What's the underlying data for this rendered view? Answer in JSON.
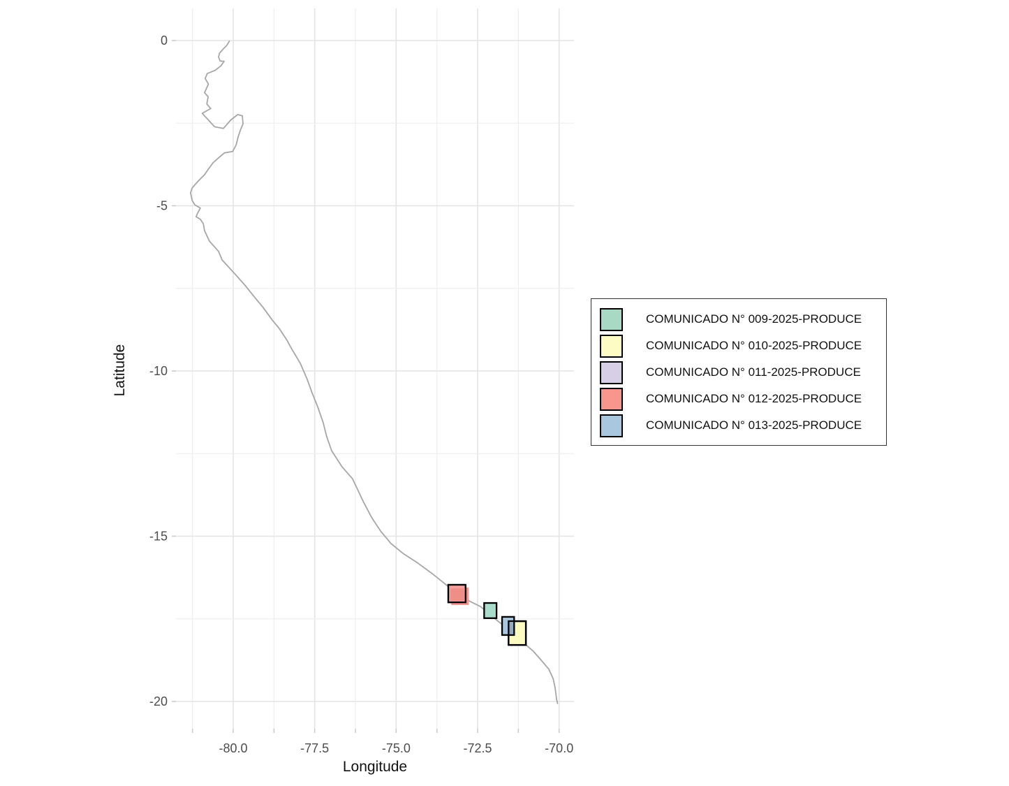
{
  "axis_x_title": "Longitude",
  "axis_y_title": "Latitude",
  "legend": {
    "items": [
      {
        "label": "COMUNICADO N° 009-2025-PRODUCE",
        "color": "#A7D9C5"
      },
      {
        "label": "COMUNICADO N° 010-2025-PRODUCE",
        "color": "#FCFCC4"
      },
      {
        "label": "COMUNICADO N° 011-2025-PRODUCE",
        "color": "#D6CFE5"
      },
      {
        "label": "COMUNICADO N° 012-2025-PRODUCE",
        "color": "#F8958C"
      },
      {
        "label": "COMUNICADO N° 013-2025-PRODUCE",
        "color": "#A9C7DF"
      }
    ]
  },
  "chart_data": {
    "type": "map",
    "title": "",
    "xlabel": "Longitude",
    "ylabel": "Latitude",
    "x_axis": {
      "range": [
        -81.76,
        -69.54
      ],
      "major_breaks": [
        -80.0,
        -77.5,
        -75.0,
        -72.5,
        -70.0
      ],
      "labels": [
        "-80.0",
        "-77.5",
        "-75.0",
        "-72.5",
        "-70.0"
      ],
      "minor_step": 1.25
    },
    "y_axis": {
      "range": [
        0.97,
        -20.82
      ],
      "major_breaks": [
        0,
        -5,
        -10,
        -15,
        -20
      ],
      "labels": [
        "0",
        "-5",
        "-10",
        "-15",
        "-20"
      ],
      "minor_step": 2.5
    },
    "grid": "on",
    "legend_position": "right",
    "zones": [
      {
        "id": "comunicado-011",
        "legend": "COMUNICADO N° 011-2025-PRODUCE",
        "fill": "#D6CFE5",
        "lon": [
          -73.4,
          -72.87
        ],
        "lat": [
          -17.0,
          -16.47
        ],
        "stroke": true
      },
      {
        "id": "comunicado-012-outer",
        "legend": "COMUNICADO N° 012-2025-PRODUCE",
        "fill": "#F29088",
        "lon": [
          -73.31,
          -72.78
        ],
        "lat": [
          -17.08,
          -16.55
        ],
        "stroke": false
      },
      {
        "id": "comunicado-012",
        "legend": "COMUNICADO N° 012-2025-PRODUCE",
        "fill": "#F5A09A",
        "lon": [
          -73.4,
          -72.87
        ],
        "lat": [
          -17.0,
          -16.47
        ],
        "stroke": true
      },
      {
        "id": "comunicado-012-inner",
        "legend": "COMUNICADO N° 012-2025-PRODUCE",
        "fill": "#EE8E86",
        "lon": [
          -73.33,
          -72.92
        ],
        "lat": [
          -16.96,
          -16.58
        ],
        "stroke": false
      },
      {
        "id": "comunicado-009",
        "legend": "COMUNICADO N° 009-2025-PRODUCE",
        "fill": "#A9DCCA",
        "lon": [
          -72.3,
          -71.92
        ],
        "lat": [
          -17.48,
          -17.02
        ],
        "stroke": true
      },
      {
        "id": "comunicado-010",
        "legend": "COMUNICADO N° 010-2025-PRODUCE",
        "fill": "#FBFAC1",
        "lon": [
          -71.55,
          -71.02
        ],
        "lat": [
          -18.29,
          -17.57
        ],
        "stroke": true
      },
      {
        "id": "comunicado-013",
        "legend": "COMUNICADO N° 013-2025-PRODUCE",
        "fill": "#A9C6DE",
        "lon": [
          -71.75,
          -71.38
        ],
        "lat": [
          -17.99,
          -17.44
        ],
        "stroke": true
      },
      {
        "id": "comunicado-010-013-overlap",
        "legend": "",
        "fill": "#92ABC2",
        "lon": [
          -71.53,
          -71.41
        ],
        "lat": [
          -17.96,
          -17.62
        ],
        "stroke": false
      },
      {
        "id": "comunicado-010-outline",
        "legend": "COMUNICADO N° 010-2025-PRODUCE",
        "fill": "none",
        "lon": [
          -71.55,
          -71.02
        ],
        "lat": [
          -18.29,
          -17.57
        ],
        "stroke": true
      }
    ],
    "coastline": [
      [
        -80.12,
        -0.02
      ],
      [
        -80.2,
        -0.15
      ],
      [
        -80.3,
        -0.25
      ],
      [
        -80.42,
        -0.38
      ],
      [
        -80.45,
        -0.5
      ],
      [
        -80.4,
        -0.62
      ],
      [
        -80.28,
        -0.63
      ],
      [
        -80.33,
        -0.7
      ],
      [
        -80.37,
        -0.76
      ],
      [
        -80.55,
        -0.9
      ],
      [
        -80.8,
        -1.0
      ],
      [
        -80.86,
        -1.15
      ],
      [
        -80.76,
        -1.32
      ],
      [
        -80.88,
        -1.58
      ],
      [
        -80.77,
        -1.7
      ],
      [
        -80.81,
        -1.92
      ],
      [
        -80.69,
        -2.06
      ],
      [
        -80.95,
        -2.2
      ],
      [
        -80.88,
        -2.28
      ],
      [
        -80.73,
        -2.44
      ],
      [
        -80.57,
        -2.61
      ],
      [
        -80.3,
        -2.66
      ],
      [
        -80.07,
        -2.4
      ],
      [
        -79.86,
        -2.24
      ],
      [
        -79.72,
        -2.28
      ],
      [
        -79.7,
        -2.52
      ],
      [
        -79.78,
        -2.71
      ],
      [
        -79.85,
        -2.92
      ],
      [
        -79.91,
        -3.16
      ],
      [
        -80.02,
        -3.36
      ],
      [
        -80.27,
        -3.4
      ],
      [
        -80.45,
        -3.55
      ],
      [
        -80.62,
        -3.7
      ],
      [
        -80.77,
        -3.9
      ],
      [
        -80.88,
        -4.06
      ],
      [
        -81.09,
        -4.27
      ],
      [
        -81.26,
        -4.46
      ],
      [
        -81.31,
        -4.61
      ],
      [
        -81.26,
        -4.84
      ],
      [
        -81.18,
        -4.97
      ],
      [
        -81.01,
        -5.07
      ],
      [
        -81.09,
        -5.22
      ],
      [
        -81.14,
        -5.33
      ],
      [
        -81.01,
        -5.41
      ],
      [
        -80.92,
        -5.54
      ],
      [
        -80.88,
        -5.75
      ],
      [
        -80.73,
        -6.07
      ],
      [
        -80.45,
        -6.38
      ],
      [
        -80.34,
        -6.64
      ],
      [
        -80.09,
        -6.91
      ],
      [
        -79.87,
        -7.15
      ],
      [
        -79.61,
        -7.44
      ],
      [
        -79.4,
        -7.7
      ],
      [
        -79.08,
        -8.08
      ],
      [
        -78.8,
        -8.46
      ],
      [
        -78.59,
        -8.71
      ],
      [
        -78.35,
        -9.07
      ],
      [
        -78.2,
        -9.34
      ],
      [
        -77.94,
        -9.77
      ],
      [
        -77.73,
        -10.25
      ],
      [
        -77.58,
        -10.66
      ],
      [
        -77.41,
        -11.08
      ],
      [
        -77.24,
        -11.56
      ],
      [
        -77.13,
        -11.99
      ],
      [
        -76.98,
        -12.41
      ],
      [
        -76.66,
        -12.9
      ],
      [
        -76.34,
        -13.26
      ],
      [
        -76.19,
        -13.57
      ],
      [
        -76.01,
        -13.95
      ],
      [
        -75.76,
        -14.42
      ],
      [
        -75.48,
        -14.84
      ],
      [
        -75.16,
        -15.22
      ],
      [
        -74.79,
        -15.52
      ],
      [
        -74.34,
        -15.81
      ],
      [
        -73.87,
        -16.15
      ],
      [
        -73.44,
        -16.49
      ],
      [
        -73.06,
        -16.79
      ],
      [
        -72.76,
        -16.96
      ],
      [
        -72.41,
        -17.13
      ],
      [
        -72.16,
        -17.34
      ],
      [
        -71.9,
        -17.55
      ],
      [
        -71.64,
        -17.76
      ],
      [
        -71.34,
        -18.01
      ],
      [
        -71.04,
        -18.27
      ],
      [
        -70.79,
        -18.48
      ],
      [
        -70.55,
        -18.75
      ],
      [
        -70.31,
        -19.03
      ],
      [
        -70.18,
        -19.32
      ],
      [
        -70.12,
        -19.6
      ],
      [
        -70.08,
        -19.92
      ],
      [
        -70.05,
        -20.06
      ]
    ]
  }
}
